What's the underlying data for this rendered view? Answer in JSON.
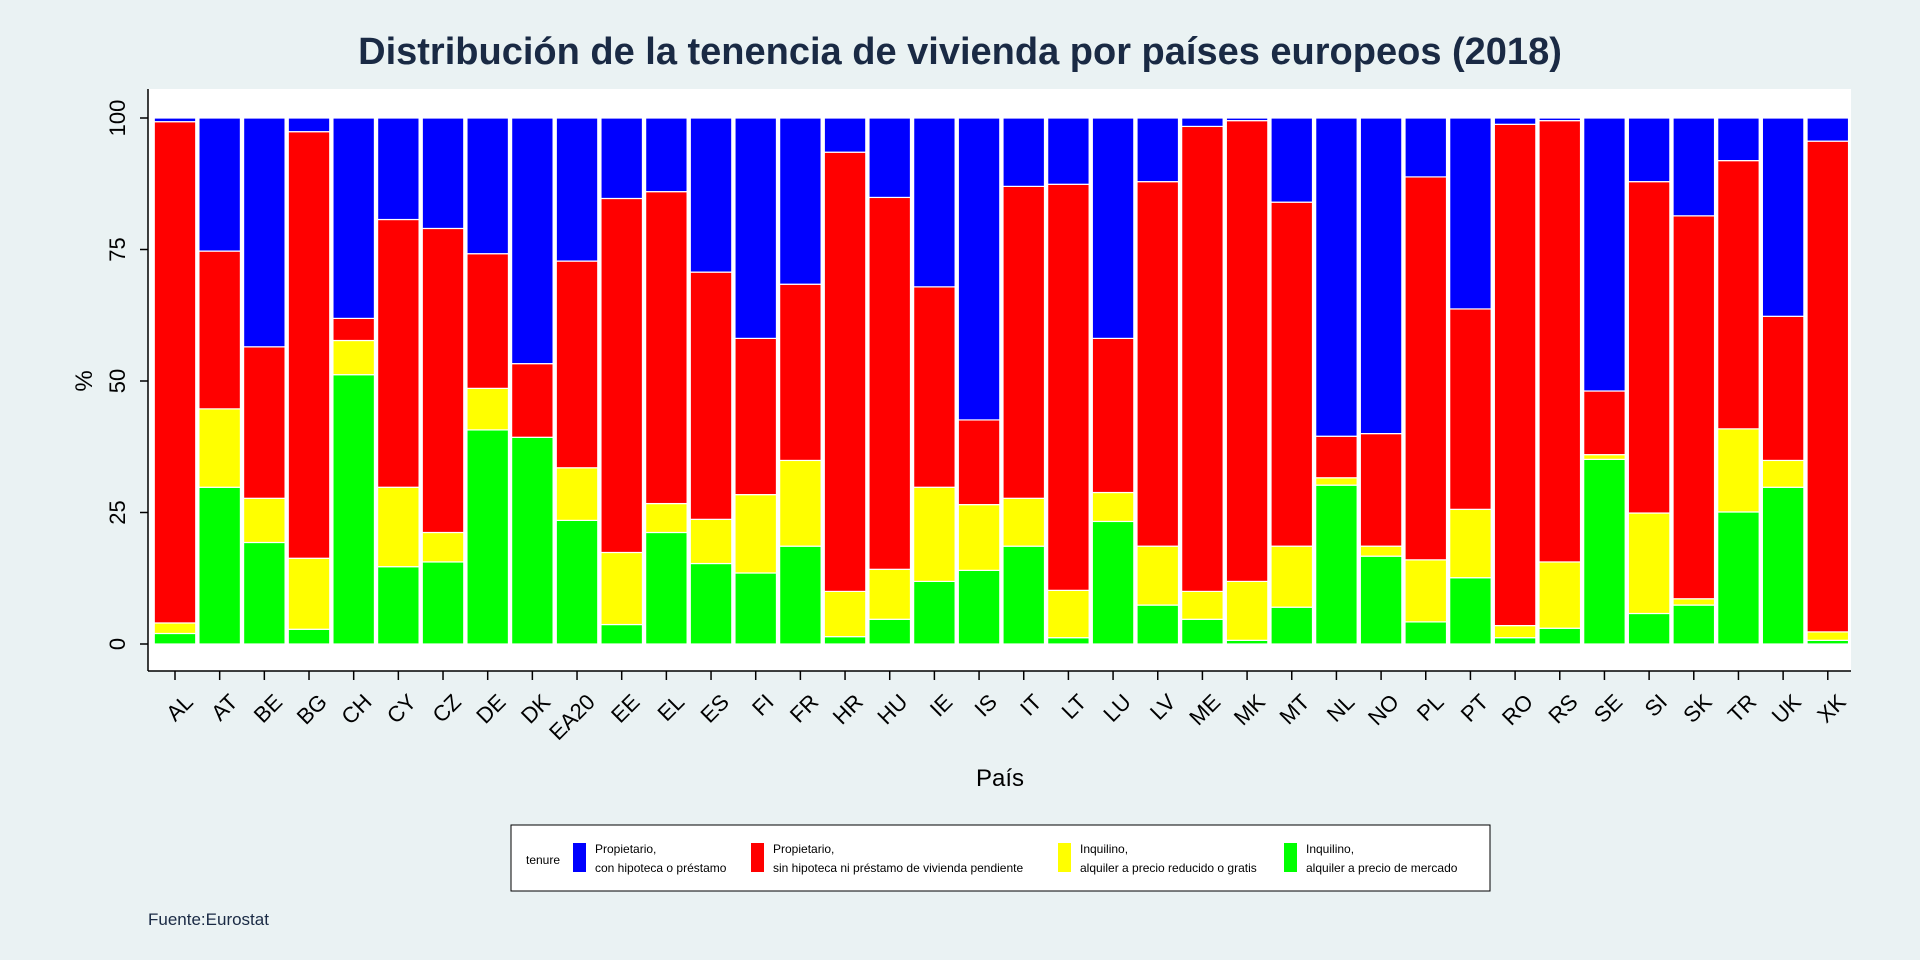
{
  "chart_data": {
    "type": "bar",
    "stacked": true,
    "title": "Distribución de la tenencia de vivienda por países europeos (2018)",
    "xlabel": "País",
    "ylabel": "%",
    "ylim": [
      0,
      100
    ],
    "yticks": [
      "0",
      "25",
      "50",
      "75",
      "100"
    ],
    "ytick_values": [
      0,
      25,
      50,
      75,
      100
    ],
    "categories": [
      "AL",
      "AT",
      "BE",
      "BG",
      "CH",
      "CY",
      "CZ",
      "DE",
      "DK",
      "EA20",
      "EE",
      "EL",
      "ES",
      "FI",
      "FR",
      "HR",
      "HU",
      "IE",
      "IS",
      "IT",
      "LT",
      "LU",
      "LV",
      "ME",
      "MK",
      "MT",
      "NL",
      "NO",
      "PL",
      "PT",
      "RO",
      "RS",
      "SE",
      "SI",
      "SK",
      "TR",
      "UK",
      "XK"
    ],
    "series": [
      {
        "name": "Inquilino,\n alquiler a precio de mercado",
        "color": "#00ff00",
        "values": [
          2.0,
          29.8,
          19.3,
          2.8,
          51.2,
          14.7,
          15.6,
          40.7,
          39.3,
          23.5,
          3.7,
          21.2,
          15.3,
          13.5,
          18.6,
          1.4,
          4.7,
          11.9,
          14.0,
          18.6,
          1.2,
          23.3,
          7.4,
          4.7,
          0.7,
          7.0,
          30.2,
          16.7,
          4.2,
          12.6,
          1.2,
          3.0,
          35.1,
          5.8,
          7.4,
          25.1,
          29.8,
          0.7
        ]
      },
      {
        "name": "Inquilino,\n alquiler a precio reducido o gratis",
        "color": "#ffff00",
        "values": [
          2.0,
          14.9,
          8.4,
          13.5,
          6.5,
          15.1,
          5.6,
          7.9,
          0.0,
          10.0,
          13.7,
          5.5,
          8.4,
          14.9,
          16.3,
          8.6,
          9.5,
          17.9,
          12.5,
          9.1,
          9.0,
          5.5,
          11.2,
          5.3,
          11.2,
          11.6,
          1.4,
          1.9,
          11.8,
          13.0,
          2.3,
          12.6,
          0.9,
          19.1,
          1.2,
          15.8,
          5.1,
          1.6
        ]
      },
      {
        "name": "Propietario,\n sin hipoteca ni préstamo de vivienda pendiente",
        "color": "#ff0000",
        "values": [
          95.3,
          30.0,
          28.8,
          81.1,
          4.2,
          50.9,
          57.8,
          25.6,
          14.0,
          39.3,
          67.3,
          59.3,
          47.0,
          29.7,
          33.5,
          83.5,
          70.7,
          38.1,
          16.1,
          59.3,
          77.2,
          29.3,
          69.3,
          88.4,
          87.6,
          65.4,
          7.9,
          21.4,
          72.8,
          38.1,
          95.3,
          83.9,
          12.1,
          63.0,
          72.8,
          51.0,
          27.4,
          93.3
        ]
      },
      {
        "name": "Propietario,\n con hipoteca o préstamo",
        "color": "#0000ff",
        "values": [
          0.7,
          25.3,
          43.5,
          2.6,
          38.1,
          19.3,
          21.0,
          25.8,
          46.7,
          27.2,
          15.3,
          14.0,
          29.3,
          41.9,
          31.6,
          6.5,
          15.1,
          32.1,
          57.4,
          13.0,
          12.6,
          41.9,
          12.1,
          1.6,
          0.5,
          16.0,
          60.5,
          60.0,
          11.2,
          36.3,
          1.2,
          0.5,
          51.9,
          12.1,
          18.6,
          8.1,
          37.7,
          4.4
        ]
      }
    ],
    "legend": {
      "title": "tenure",
      "placement": "bottom",
      "order": [
        3,
        2,
        1,
        0
      ]
    },
    "grid": false
  },
  "legend": {
    "title": "tenure",
    "items": [
      {
        "line1": "Propietario,",
        "line2": " con hipoteca o préstamo",
        "color": "#0000ff"
      },
      {
        "line1": "Propietario,",
        "line2": " sin hipoteca ni préstamo de vivienda pendiente",
        "color": "#ff0000"
      },
      {
        "line1": "Inquilino,",
        "line2": " alquiler a precio reducido o gratis",
        "color": "#ffff00"
      },
      {
        "line1": "Inquilino,",
        "line2": " alquiler a precio de mercado",
        "color": "#00ff00"
      }
    ]
  },
  "source": "Fuente:Eurostat"
}
